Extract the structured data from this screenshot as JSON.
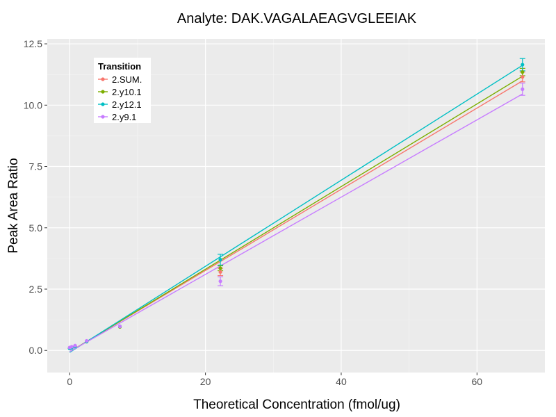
{
  "chart_data": {
    "type": "scatter",
    "title": "Analyte: DAK.VAGALAEAGVGLEEIAK",
    "xlabel": "Theoretical Concentration (fmol/ug)",
    "ylabel": "Peak Area Ratio",
    "xlim": [
      -3.3,
      70
    ],
    "ylim": [
      -0.9,
      12.7
    ],
    "x_ticks": [
      0,
      20,
      40,
      60
    ],
    "y_ticks": [
      "0.0",
      "2.5",
      "5.0",
      "7.5",
      "10.0",
      "12.5"
    ],
    "grid": true,
    "legend": {
      "title": "Transition",
      "position": "top-left"
    },
    "series": [
      {
        "name": "2.SUM.",
        "color": "#F8766D",
        "points": [
          {
            "x": 0,
            "y": 0.1
          },
          {
            "x": 0.3,
            "y": 0.13
          },
          {
            "x": 0.8,
            "y": 0.18
          },
          {
            "x": 2.5,
            "y": 0.37
          },
          {
            "x": 7.4,
            "y": 0.97
          },
          {
            "x": 22.2,
            "y": 3.2,
            "err": 0.15
          },
          {
            "x": 66.7,
            "y": 11.15,
            "err": 0.2
          }
        ],
        "fit": {
          "slope": 0.1655,
          "intercept": -0.05
        }
      },
      {
        "name": "2.y10.1",
        "color": "#7CAE00",
        "points": [
          {
            "x": 0,
            "y": 0.09
          },
          {
            "x": 0.3,
            "y": 0.12
          },
          {
            "x": 0.8,
            "y": 0.17
          },
          {
            "x": 2.5,
            "y": 0.36
          },
          {
            "x": 7.4,
            "y": 0.96
          },
          {
            "x": 22.2,
            "y": 3.35,
            "err": 0.1
          },
          {
            "x": 66.7,
            "y": 11.35,
            "err": 0.15
          }
        ],
        "fit": {
          "slope": 0.1685,
          "intercept": -0.06
        }
      },
      {
        "name": "2.y12.1",
        "color": "#00BFC4",
        "points": [
          {
            "x": 0,
            "y": 0.08
          },
          {
            "x": 0.3,
            "y": 0.11
          },
          {
            "x": 0.8,
            "y": 0.16
          },
          {
            "x": 2.5,
            "y": 0.36
          },
          {
            "x": 7.4,
            "y": 0.98
          },
          {
            "x": 22.2,
            "y": 3.7,
            "err": 0.22
          },
          {
            "x": 66.7,
            "y": 11.65,
            "err": 0.25
          }
        ],
        "fit": {
          "slope": 0.1755,
          "intercept": -0.08
        }
      },
      {
        "name": "2.y9.1",
        "color": "#C77CFF",
        "points": [
          {
            "x": 0,
            "y": 0.12
          },
          {
            "x": 0.3,
            "y": 0.15
          },
          {
            "x": 0.8,
            "y": 0.2
          },
          {
            "x": 2.5,
            "y": 0.39
          },
          {
            "x": 7.4,
            "y": 0.98
          },
          {
            "x": 22.2,
            "y": 2.82,
            "err": 0.18
          },
          {
            "x": 66.7,
            "y": 10.65,
            "err": 0.25
          }
        ],
        "fit": {
          "slope": 0.1575,
          "intercept": -0.05
        }
      }
    ]
  }
}
